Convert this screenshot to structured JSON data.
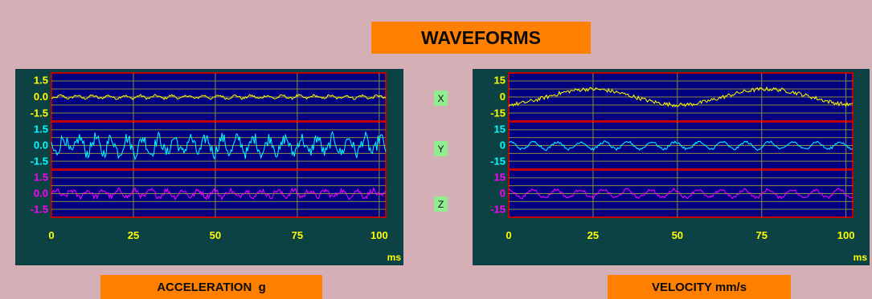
{
  "title": "WAVEFORMS",
  "axes": [
    "X",
    "Y",
    "Z"
  ],
  "colors": {
    "background": "#d4b0b6",
    "panel": "#0d4245",
    "plot_bg": "#000080",
    "plot_border": "#c00000",
    "grid": "#8a8a40",
    "x": "#ffff00",
    "y": "#00ffff",
    "z": "#ff00ff",
    "label_bg": "#ff8000"
  },
  "chart_data": [
    {
      "type": "line",
      "title": "",
      "label": "ACCELERATION  g",
      "xlabel": "ms",
      "xlim": [
        0,
        102
      ],
      "xticks": [
        "0",
        "25",
        "50",
        "75",
        "100"
      ],
      "ylim": [
        -2.2,
        2.2
      ],
      "yticks": [
        "1.5",
        "0.0",
        "-1.5"
      ],
      "series": [
        {
          "axis": "X",
          "color": "#ffff00",
          "amplitude": 0.25
        },
        {
          "axis": "Y",
          "color": "#00ffff",
          "amplitude": 1.3
        },
        {
          "axis": "Z",
          "color": "#ff00ff",
          "amplitude": 0.55
        }
      ]
    },
    {
      "type": "line",
      "title": "",
      "label": "VELOCITY mm/s",
      "xlabel": "ms",
      "xlim": [
        0,
        102
      ],
      "xticks": [
        "0",
        "25",
        "50",
        "75",
        "100"
      ],
      "ylim": [
        -22,
        22
      ],
      "yticks": [
        "15",
        "0",
        "-15"
      ],
      "series": [
        {
          "axis": "X",
          "color": "#ffff00",
          "amplitude": 9
        },
        {
          "axis": "Y",
          "color": "#00ffff",
          "amplitude": 4.5
        },
        {
          "axis": "Z",
          "color": "#ff00ff",
          "amplitude": 5
        }
      ]
    }
  ]
}
